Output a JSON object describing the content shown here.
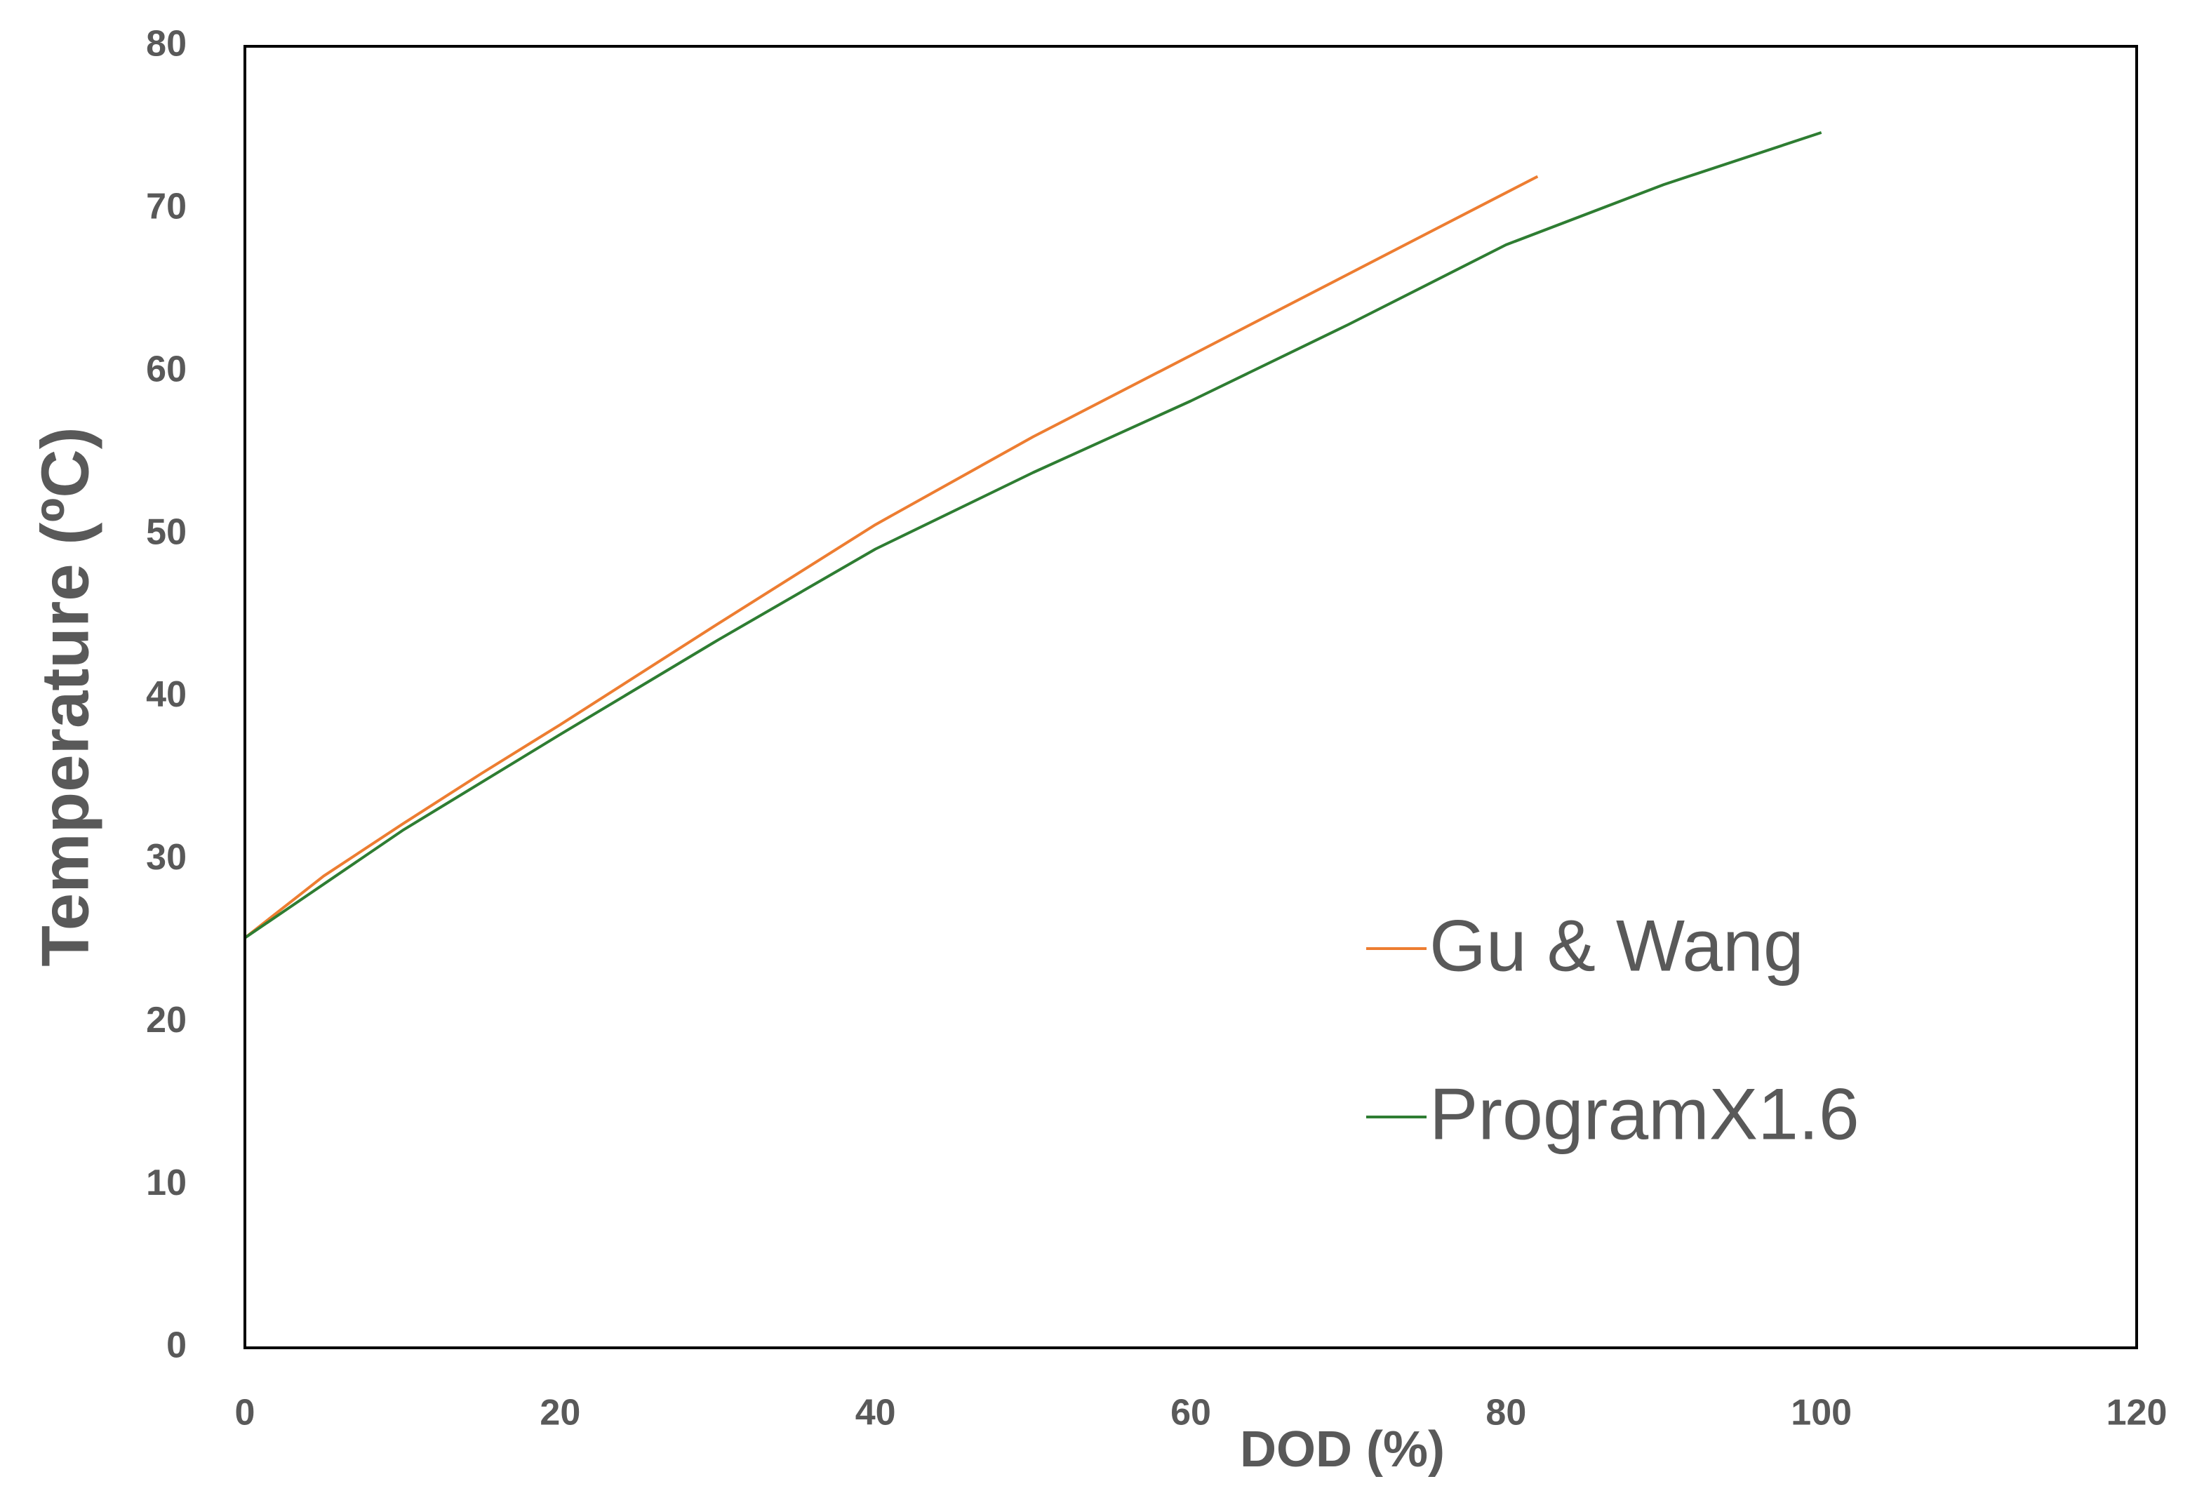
{
  "chart_data": {
    "type": "line",
    "xlabel": "DOD (%)",
    "ylabel": "Temperature (ºC)",
    "xlim": [
      0,
      120
    ],
    "xticks": [
      0,
      20,
      40,
      60,
      80,
      100,
      120
    ],
    "ylim": [
      0,
      80
    ],
    "yticks": [
      0,
      10,
      20,
      30,
      40,
      50,
      60,
      70,
      80
    ],
    "grid": false,
    "legend": "lower right",
    "series": [
      {
        "name": "Gu & Wang",
        "color": "#ed7d31",
        "x": [
          0,
          5,
          10,
          15,
          20,
          30,
          40,
          50,
          60,
          70,
          80,
          82
        ],
        "values": [
          25.2,
          29,
          32.2,
          35.3,
          38.3,
          44.5,
          50.6,
          56,
          61,
          66,
          71,
          72
        ]
      },
      {
        "name": "ProgramX1.6",
        "color": "#2e7d32",
        "x": [
          0,
          5,
          10,
          20,
          30,
          40,
          50,
          60,
          70,
          80,
          90,
          100
        ],
        "values": [
          25.2,
          28.5,
          31.8,
          37.7,
          43.5,
          49.1,
          53.8,
          58.2,
          62.9,
          67.8,
          71.5,
          74.7
        ]
      }
    ]
  }
}
